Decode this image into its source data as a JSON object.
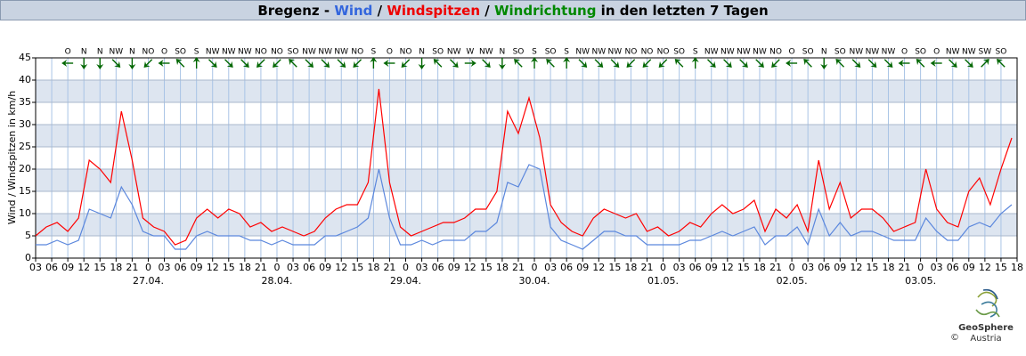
{
  "chart_data": {
    "type": "line",
    "title": [
      {
        "text": "Bregenz - ",
        "color": "#000000"
      },
      {
        "text": "Wind",
        "color": "#3366dd"
      },
      {
        "text": " / ",
        "color": "#000000"
      },
      {
        "text": "Windspitzen",
        "color": "#ee0000"
      },
      {
        "text": " / ",
        "color": "#000000"
      },
      {
        "text": "Windrichtung",
        "color": "#008800"
      },
      {
        "text": " in den letzten 7 Tagen",
        "color": "#000000"
      }
    ],
    "ylabel": "Wind / Windspitzen in km/h",
    "x": [
      "26.04. 03:00",
      "26.04. 05:00",
      "26.04. 07:00",
      "26.04. 09:00",
      "26.04. 11:00",
      "26.04. 13:00",
      "26.04. 15:00",
      "26.04. 17:00",
      "26.04. 19:00",
      "26.04. 21:00",
      "26.04. 23:00",
      "27.04. 01:00",
      "27.04. 03:00",
      "27.04. 05:00",
      "27.04. 07:00",
      "27.04. 09:00",
      "27.04. 11:00",
      "27.04. 13:00",
      "27.04. 15:00",
      "27.04. 17:00",
      "27.04. 19:00",
      "27.04. 21:00",
      "27.04. 23:00",
      "28.04. 01:00",
      "28.04. 03:00",
      "28.04. 05:00",
      "28.04. 07:00",
      "28.04. 09:00",
      "28.04. 11:00",
      "28.04. 13:00",
      "28.04. 15:00",
      "28.04. 17:00",
      "28.04. 19:00",
      "28.04. 21:00",
      "28.04. 23:00",
      "29.04. 01:00",
      "29.04. 03:00",
      "29.04. 05:00",
      "29.04. 07:00",
      "29.04. 09:00",
      "29.04. 11:00",
      "29.04. 13:00",
      "29.04. 15:00",
      "29.04. 17:00",
      "29.04. 19:00",
      "29.04. 21:00",
      "29.04. 23:00",
      "30.04. 01:00",
      "30.04. 03:00",
      "30.04. 05:00",
      "30.04. 07:00",
      "30.04. 09:00",
      "30.04. 11:00",
      "30.04. 13:00",
      "30.04. 15:00",
      "30.04. 17:00",
      "30.04. 19:00",
      "30.04. 21:00",
      "30.04. 23:00",
      "01.05. 01:00",
      "01.05. 03:00",
      "01.05. 05:00",
      "01.05. 07:00",
      "01.05. 09:00",
      "01.05. 11:00",
      "01.05. 13:00",
      "01.05. 15:00",
      "01.05. 17:00",
      "01.05. 19:00",
      "01.05. 21:00",
      "01.05. 23:00",
      "02.05. 01:00",
      "02.05. 03:00",
      "02.05. 05:00",
      "02.05. 07:00",
      "02.05. 09:00",
      "02.05. 11:00",
      "02.05. 13:00",
      "02.05. 15:00",
      "02.05. 17:00",
      "02.05. 19:00",
      "02.05. 21:00",
      "02.05. 23:00",
      "03.05. 01:00",
      "03.05. 03:00",
      "03.05. 05:00",
      "03.05. 07:00",
      "03.05. 09:00",
      "03.05. 11:00",
      "03.05. 13:00",
      "03.05. 15:00",
      "03.05. 17:00"
    ],
    "series": [
      {
        "color": "#ff0000",
        "values": [
          5,
          7,
          8,
          6,
          9,
          22,
          20,
          17,
          33,
          22,
          9,
          7,
          6,
          3,
          4,
          9,
          11,
          9,
          11,
          10,
          7,
          8,
          6,
          7,
          6,
          5,
          6,
          9,
          11,
          12,
          12,
          17,
          38,
          17,
          7,
          5,
          6,
          7,
          8,
          8,
          9,
          11,
          11,
          15,
          33,
          28,
          36,
          27,
          12,
          8,
          6,
          5,
          9,
          11,
          10,
          9,
          10,
          6,
          7,
          5,
          6,
          8,
          7,
          10,
          12,
          10,
          11,
          13,
          6,
          11,
          9,
          12,
          6,
          22,
          11,
          17,
          9,
          11,
          11,
          9,
          6,
          7,
          8,
          20,
          11,
          8,
          7,
          15,
          18,
          12,
          20,
          27
        ]
      },
      {
        "color": "#5b87dd",
        "values": [
          3,
          3,
          4,
          3,
          4,
          11,
          10,
          9,
          16,
          12,
          6,
          5,
          5,
          2,
          2,
          5,
          6,
          5,
          5,
          5,
          4,
          4,
          3,
          4,
          3,
          3,
          3,
          5,
          5,
          6,
          7,
          9,
          20,
          9,
          3,
          3,
          4,
          3,
          4,
          4,
          4,
          6,
          6,
          8,
          17,
          16,
          21,
          20,
          7,
          4,
          3,
          2,
          4,
          6,
          6,
          5,
          5,
          3,
          3,
          3,
          3,
          4,
          4,
          5,
          6,
          5,
          6,
          7,
          3,
          5,
          5,
          7,
          3,
          11,
          5,
          8,
          5,
          6,
          6,
          5,
          4,
          4,
          4,
          9,
          6,
          4,
          4,
          7,
          8,
          7,
          10,
          12
        ]
      }
    ],
    "ylim": [
      0,
      45
    ],
    "yticks": [
      0,
      5,
      10,
      15,
      20,
      25,
      30,
      35,
      40,
      45
    ],
    "shaded_bands": [
      [
        5,
        10
      ],
      [
        15,
        20
      ],
      [
        25,
        30
      ],
      [
        35,
        40
      ]
    ],
    "xlim": [
      "26.04. 03:00",
      "03.05. 18:00"
    ],
    "xticks": [
      {
        "value": "26.04. 03:00",
        "label": "03"
      },
      {
        "value": "26.04. 06:00",
        "label": "06"
      },
      {
        "value": "26.04. 09:00",
        "label": "09"
      },
      {
        "value": "26.04. 12:00",
        "label": "12"
      },
      {
        "value": "26.04. 15:00",
        "label": "15"
      },
      {
        "value": "26.04. 18:00",
        "label": "18"
      },
      {
        "value": "26.04. 21:00",
        "label": "21"
      },
      {
        "value": "27.04. 00:00",
        "label": "0"
      },
      {
        "value": "27.04. 03:00",
        "label": "03"
      },
      {
        "value": "27.04. 06:00",
        "label": "06"
      },
      {
        "value": "27.04. 09:00",
        "label": "09"
      },
      {
        "value": "27.04. 12:00",
        "label": "12"
      },
      {
        "value": "27.04. 15:00",
        "label": "15"
      },
      {
        "value": "27.04. 18:00",
        "label": "18"
      },
      {
        "value": "27.04. 21:00",
        "label": "21"
      },
      {
        "value": "28.04. 00:00",
        "label": "0"
      },
      {
        "value": "28.04. 03:00",
        "label": "03"
      },
      {
        "value": "28.04. 06:00",
        "label": "06"
      },
      {
        "value": "28.04. 09:00",
        "label": "09"
      },
      {
        "value": "28.04. 12:00",
        "label": "12"
      },
      {
        "value": "28.04. 15:00",
        "label": "15"
      },
      {
        "value": "28.04. 18:00",
        "label": "18"
      },
      {
        "value": "28.04. 21:00",
        "label": "21"
      },
      {
        "value": "29.04. 00:00",
        "label": "0"
      },
      {
        "value": "29.04. 03:00",
        "label": "03"
      },
      {
        "value": "29.04. 06:00",
        "label": "06"
      },
      {
        "value": "29.04. 09:00",
        "label": "09"
      },
      {
        "value": "29.04. 12:00",
        "label": "12"
      },
      {
        "value": "29.04. 15:00",
        "label": "15"
      },
      {
        "value": "29.04. 18:00",
        "label": "18"
      },
      {
        "value": "29.04. 21:00",
        "label": "21"
      },
      {
        "value": "30.04. 00:00",
        "label": "0"
      },
      {
        "value": "30.04. 03:00",
        "label": "03"
      },
      {
        "value": "30.04. 06:00",
        "label": "06"
      },
      {
        "value": "30.04. 09:00",
        "label": "09"
      },
      {
        "value": "30.04. 12:00",
        "label": "12"
      },
      {
        "value": "30.04. 15:00",
        "label": "15"
      },
      {
        "value": "30.04. 18:00",
        "label": "18"
      },
      {
        "value": "30.04. 21:00",
        "label": "21"
      },
      {
        "value": "01.05. 00:00",
        "label": "0"
      },
      {
        "value": "01.05. 03:00",
        "label": "03"
      },
      {
        "value": "01.05. 06:00",
        "label": "06"
      },
      {
        "value": "01.05. 09:00",
        "label": "09"
      },
      {
        "value": "01.05. 12:00",
        "label": "12"
      },
      {
        "value": "01.05. 15:00",
        "label": "15"
      },
      {
        "value": "01.05. 18:00",
        "label": "18"
      },
      {
        "value": "01.05. 21:00",
        "label": "21"
      },
      {
        "value": "02.05. 00:00",
        "label": "0"
      },
      {
        "value": "02.05. 03:00",
        "label": "03"
      },
      {
        "value": "02.05. 06:00",
        "label": "06"
      },
      {
        "value": "02.05. 09:00",
        "label": "09"
      },
      {
        "value": "02.05. 12:00",
        "label": "12"
      },
      {
        "value": "02.05. 15:00",
        "label": "15"
      },
      {
        "value": "02.05. 18:00",
        "label": "18"
      },
      {
        "value": "02.05. 21:00",
        "label": "21"
      },
      {
        "value": "03.05. 00:00",
        "label": "0"
      },
      {
        "value": "03.05. 03:00",
        "label": "03"
      },
      {
        "value": "03.05. 06:00",
        "label": "06"
      },
      {
        "value": "03.05. 09:00",
        "label": "09"
      },
      {
        "value": "03.05. 12:00",
        "label": "12"
      },
      {
        "value": "03.05. 15:00",
        "label": "15"
      },
      {
        "value": "03.05. 18:00",
        "label": "18"
      }
    ],
    "date_labels": [
      {
        "value": "27.04. 00:00",
        "label": "27.04."
      },
      {
        "value": "28.04. 00:00",
        "label": "28.04."
      },
      {
        "value": "29.04. 00:00",
        "label": "29.04."
      },
      {
        "value": "30.04. 00:00",
        "label": "30.04."
      },
      {
        "value": "01.05. 00:00",
        "label": "01.05."
      },
      {
        "value": "02.05. 00:00",
        "label": "02.05."
      },
      {
        "value": "03.05. 00:00",
        "label": "03.05."
      }
    ],
    "wind_direction": {
      "color": "#006600",
      "x": [
        "26.04. 09:00",
        "26.04. 12:00",
        "26.04. 15:00",
        "26.04. 18:00",
        "26.04. 21:00",
        "27.04. 00:00",
        "27.04. 03:00",
        "27.04. 06:00",
        "27.04. 09:00",
        "27.04. 12:00",
        "27.04. 15:00",
        "27.04. 18:00",
        "27.04. 21:00",
        "28.04. 00:00",
        "28.04. 03:00",
        "28.04. 06:00",
        "28.04. 09:00",
        "28.04. 12:00",
        "28.04. 15:00",
        "28.04. 18:00",
        "28.04. 21:00",
        "29.04. 00:00",
        "29.04. 03:00",
        "29.04. 06:00",
        "29.04. 09:00",
        "29.04. 12:00",
        "29.04. 15:00",
        "29.04. 18:00",
        "29.04. 21:00",
        "30.04. 00:00",
        "30.04. 03:00",
        "30.04. 06:00",
        "30.04. 09:00",
        "30.04. 12:00",
        "30.04. 15:00",
        "30.04. 18:00",
        "30.04. 21:00",
        "01.05. 00:00",
        "01.05. 03:00",
        "01.05. 06:00",
        "01.05. 09:00",
        "01.05. 12:00",
        "01.05. 15:00",
        "01.05. 18:00",
        "01.05. 21:00",
        "02.05. 00:00",
        "02.05. 03:00",
        "02.05. 06:00",
        "02.05. 09:00",
        "02.05. 12:00",
        "02.05. 15:00",
        "02.05. 18:00",
        "02.05. 21:00",
        "03.05. 00:00",
        "03.05. 03:00",
        "03.05. 06:00",
        "03.05. 09:00",
        "03.05. 12:00",
        "03.05. 15:00"
      ],
      "values": [
        "O",
        "N",
        "N",
        "NW",
        "N",
        "NO",
        "O",
        "SO",
        "S",
        "NW",
        "NW",
        "NW",
        "NO",
        "NO",
        "SO",
        "NW",
        "NW",
        "NW",
        "NO",
        "S",
        "O",
        "NO",
        "N",
        "SO",
        "NW",
        "W",
        "NW",
        "N",
        "SO",
        "S",
        "SO",
        "S",
        "NW",
        "NW",
        "NW",
        "NO",
        "NO",
        "NO",
        "SO",
        "S",
        "NW",
        "NW",
        "NW",
        "NW",
        "NO",
        "O",
        "SO",
        "N",
        "SO",
        "NW",
        "NW",
        "NW",
        "O",
        "SO",
        "O",
        "NW",
        "NW",
        "SW",
        "SO"
      ]
    },
    "logo": {
      "name": "GeoSphere",
      "sub": "Austria",
      "copyright": "©"
    }
  }
}
